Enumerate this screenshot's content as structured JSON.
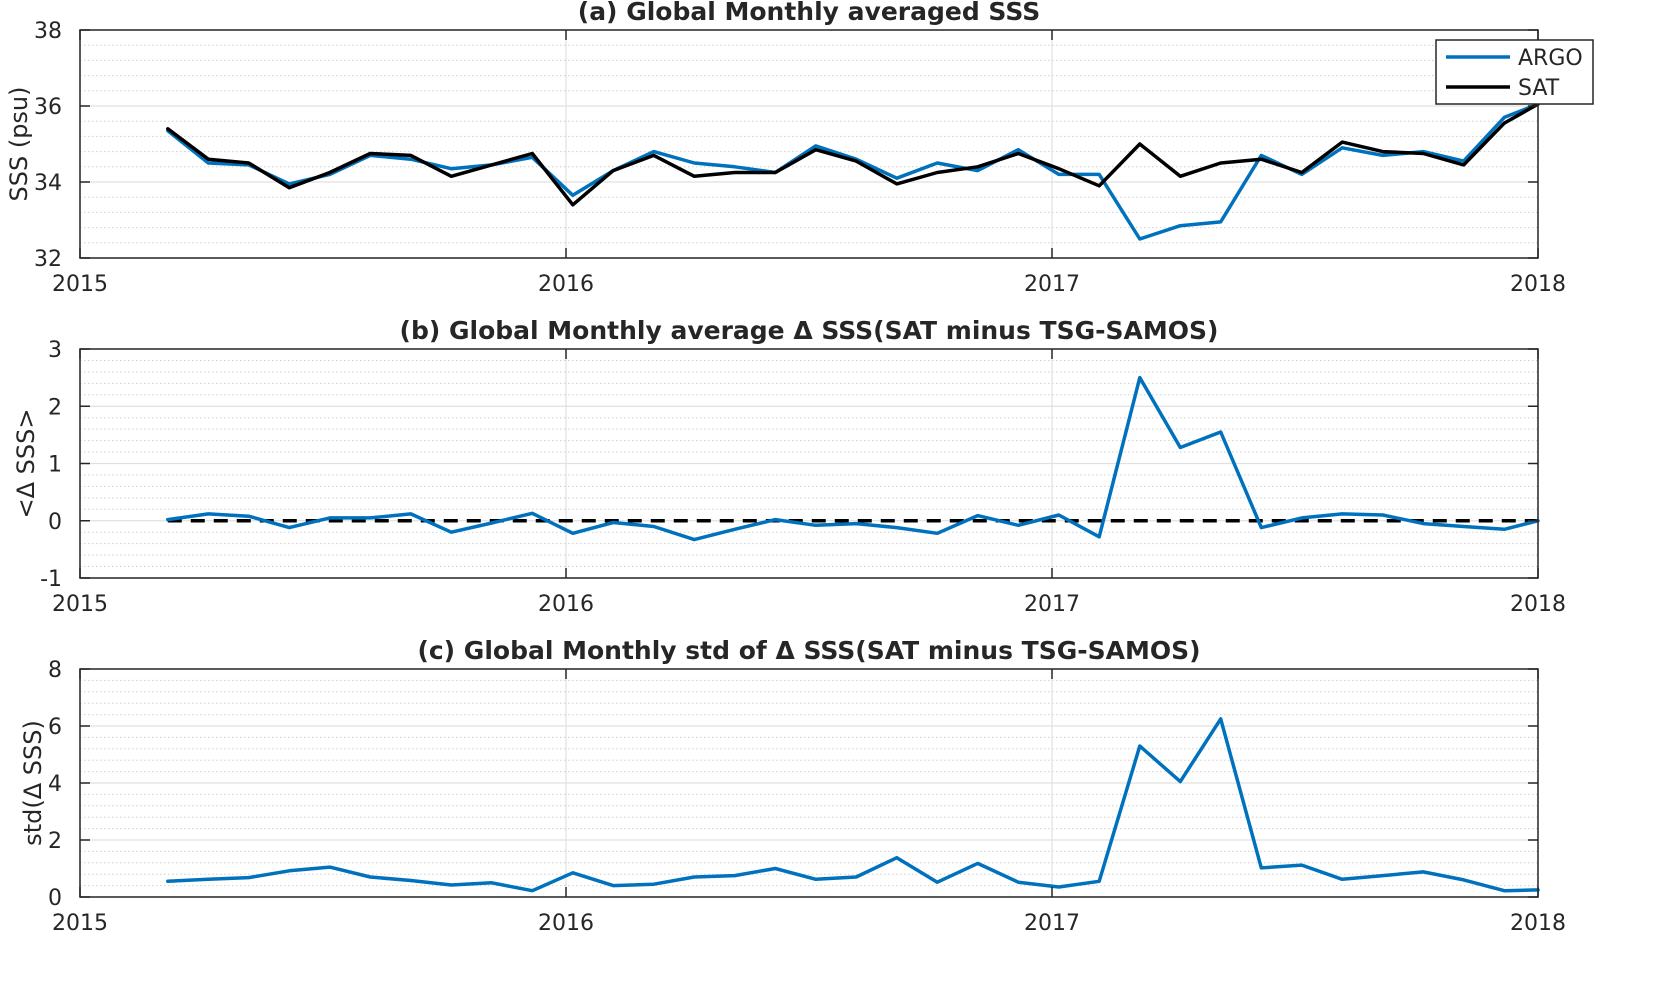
{
  "chart_data": [
    {
      "type": "line",
      "title": "(a) Global Monthly averaged SSS",
      "xlabel": "",
      "ylabel": "SSS (psu)",
      "xlim": [
        2015,
        2018
      ],
      "ylim": [
        32,
        38
      ],
      "xticks": [
        "2015",
        "2016",
        "2017",
        "2018"
      ],
      "yticks": [
        "32",
        "34",
        "36",
        "38"
      ],
      "grid": true,
      "minor_grid": true,
      "legend": "top-right",
      "x": [
        2015.1806,
        2015.2639,
        2015.3472,
        2015.4306,
        2015.5139,
        2015.5972,
        2015.6806,
        2015.7639,
        2015.8472,
        2015.9306,
        2016.0139,
        2016.0972,
        2016.1806,
        2016.2639,
        2016.3472,
        2016.4306,
        2016.5139,
        2016.5972,
        2016.6806,
        2016.7639,
        2016.8472,
        2016.9306,
        2017.0139,
        2017.0972,
        2017.1806,
        2017.2639,
        2017.3472,
        2017.4306,
        2017.5139,
        2017.5972,
        2017.6806,
        2017.7639,
        2017.8472,
        2017.9306,
        2018.0
      ],
      "series": [
        {
          "name": "ARGO",
          "color": "#0072BD",
          "values": [
            35.35,
            34.5,
            34.45,
            33.95,
            34.2,
            34.7,
            34.6,
            34.35,
            34.45,
            34.65,
            33.65,
            34.3,
            34.8,
            34.5,
            34.4,
            34.25,
            34.95,
            34.6,
            34.1,
            34.5,
            34.3,
            34.85,
            34.2,
            34.2,
            32.5,
            32.85,
            32.95,
            34.7,
            34.2,
            34.9,
            34.7,
            34.8,
            34.55,
            35.7,
            36.05
          ]
        },
        {
          "name": "SAT",
          "color": "#000000",
          "values": [
            35.4,
            34.6,
            34.5,
            33.85,
            34.25,
            34.75,
            34.7,
            34.15,
            34.45,
            34.75,
            33.4,
            34.3,
            34.7,
            34.15,
            34.25,
            34.25,
            34.85,
            34.55,
            33.95,
            34.25,
            34.4,
            34.75,
            34.35,
            33.9,
            35.0,
            34.15,
            34.5,
            34.6,
            34.25,
            35.05,
            34.8,
            34.75,
            34.45,
            35.55,
            36.05
          ]
        }
      ]
    },
    {
      "type": "line",
      "title": "(b) Global Monthly average Δ SSS(SAT minus TSG-SAMOS)",
      "xlabel": "",
      "ylabel": "<Δ SSS>",
      "xlim": [
        2015,
        2018
      ],
      "ylim": [
        -1,
        3
      ],
      "xticks": [
        "2015",
        "2016",
        "2017",
        "2018"
      ],
      "yticks": [
        "-1",
        "0",
        "1",
        "2",
        "3"
      ],
      "grid": true,
      "minor_grid": true,
      "reference_line": 0,
      "x": [
        2015.1806,
        2015.2639,
        2015.3472,
        2015.4306,
        2015.5139,
        2015.5972,
        2015.6806,
        2015.7639,
        2015.8472,
        2015.9306,
        2016.0139,
        2016.0972,
        2016.1806,
        2016.2639,
        2016.3472,
        2016.4306,
        2016.5139,
        2016.5972,
        2016.6806,
        2016.7639,
        2016.8472,
        2016.9306,
        2017.0139,
        2017.0972,
        2017.1806,
        2017.2639,
        2017.3472,
        2017.4306,
        2017.5139,
        2017.5972,
        2017.6806,
        2017.7639,
        2017.8472,
        2017.9306,
        2018.0
      ],
      "series": [
        {
          "color": "#0072BD",
          "values": [
            0.02,
            0.12,
            0.08,
            -0.12,
            0.05,
            0.05,
            0.12,
            -0.2,
            -0.04,
            0.13,
            -0.22,
            -0.03,
            -0.1,
            -0.33,
            -0.15,
            0.02,
            -0.08,
            -0.05,
            -0.12,
            -0.22,
            0.09,
            -0.08,
            0.1,
            -0.28,
            2.5,
            1.28,
            1.55,
            -0.12,
            0.05,
            0.12,
            0.1,
            -0.05,
            -0.1,
            -0.15,
            0.0
          ]
        }
      ]
    },
    {
      "type": "line",
      "title": "(c) Global Monthly std of Δ SSS(SAT minus TSG-SAMOS)",
      "xlabel": "",
      "ylabel": "std(Δ SSS)",
      "xlim": [
        2015,
        2018
      ],
      "ylim": [
        0,
        8
      ],
      "xticks": [
        "2015",
        "2016",
        "2017",
        "2018"
      ],
      "yticks": [
        "0",
        "2",
        "4",
        "6",
        "8"
      ],
      "grid": true,
      "minor_grid": true,
      "x": [
        2015.1806,
        2015.2639,
        2015.3472,
        2015.4306,
        2015.5139,
        2015.5972,
        2015.6806,
        2015.7639,
        2015.8472,
        2015.9306,
        2016.0139,
        2016.0972,
        2016.1806,
        2016.2639,
        2016.3472,
        2016.4306,
        2016.5139,
        2016.5972,
        2016.6806,
        2016.7639,
        2016.8472,
        2016.9306,
        2017.0139,
        2017.0972,
        2017.1806,
        2017.2639,
        2017.3472,
        2017.4306,
        2017.5139,
        2017.5972,
        2017.6806,
        2017.7639,
        2017.8472,
        2017.9306,
        2018.0
      ],
      "series": [
        {
          "color": "#0072BD",
          "values": [
            0.55,
            0.62,
            0.68,
            0.92,
            1.05,
            0.7,
            0.58,
            0.42,
            0.5,
            0.22,
            0.85,
            0.4,
            0.45,
            0.7,
            0.75,
            1.0,
            0.62,
            0.7,
            1.38,
            0.52,
            1.18,
            0.52,
            0.35,
            0.55,
            5.3,
            4.05,
            6.25,
            1.02,
            1.12,
            0.62,
            0.75,
            0.88,
            0.6,
            0.22,
            0.25
          ]
        }
      ]
    }
  ]
}
